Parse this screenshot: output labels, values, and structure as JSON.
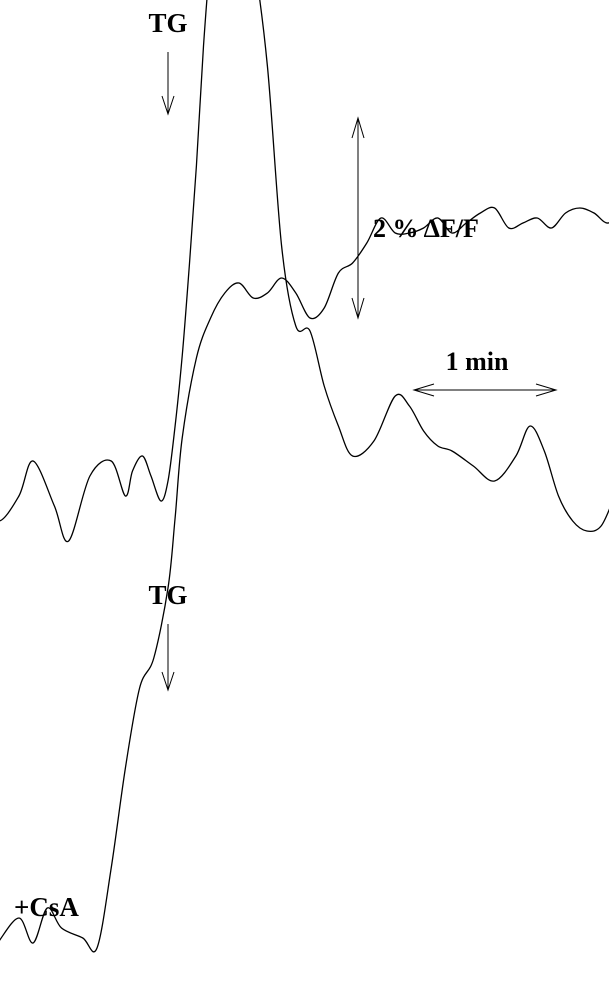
{
  "chart_data": {
    "type": "line",
    "colors": {
      "trace": "#000000",
      "background": "#ffffff"
    },
    "panels": [
      {
        "id": "control",
        "marker_label": "TG",
        "condition_label": "",
        "stimulus_time_min": 0,
        "series": [
          {
            "x_min": [
              -1.3,
              -1.2,
              -1.05,
              -0.95,
              -0.8,
              -0.7,
              -0.55,
              -0.4,
              -0.3,
              -0.25,
              -0.18,
              -0.12,
              -0.05,
              0,
              0.05,
              0.1,
              0.15,
              0.2,
              0.25,
              0.3,
              0.35,
              0.4,
              0.5,
              0.6,
              0.7,
              0.8,
              0.9,
              1.0,
              1.1,
              1.2,
              1.3,
              1.45,
              1.6,
              1.7,
              1.8,
              1.9,
              2.0,
              2.15,
              2.3,
              2.45,
              2.55,
              2.65,
              2.75,
              2.85,
              2.95,
              3.05,
              3.15,
              3.3,
              3.45,
              3.55,
              3.65,
              3.75,
              3.85,
              3.95,
              4.05,
              4.15
            ],
            "delta_f_percent": [
              0.0,
              -0.35,
              -0.1,
              0.25,
              -0.2,
              -0.55,
              0.1,
              0.25,
              -0.1,
              0.15,
              0.3,
              0.1,
              -0.15,
              0.05,
              0.6,
              1.3,
              2.2,
              3.2,
              4.4,
              5.3,
              5.95,
              6.0,
              5.9,
              5.3,
              4.2,
              2.4,
              1.6,
              1.55,
              1.0,
              0.6,
              0.3,
              0.45,
              0.9,
              0.8,
              0.55,
              0.4,
              0.35,
              0.2,
              0.05,
              0.3,
              0.6,
              0.35,
              -0.1,
              -0.35,
              -0.45,
              -0.4,
              -0.1,
              0.3,
              -0.1,
              0.1,
              0.25,
              0.0,
              -0.45,
              -0.4,
              -0.1,
              -0.25
            ]
          }
        ]
      },
      {
        "id": "cyclosporin",
        "marker_label": "TG",
        "condition_label": "+CsA",
        "stimulus_time_min": 0,
        "series": [
          {
            "x_min": [
              -1.3,
              -1.2,
              -1.05,
              -0.95,
              -0.85,
              -0.75,
              -0.6,
              -0.5,
              -0.4,
              -0.3,
              -0.2,
              -0.1,
              0,
              0.05,
              0.1,
              0.2,
              0.3,
              0.4,
              0.5,
              0.6,
              0.7,
              0.8,
              0.9,
              1.0,
              1.1,
              1.2,
              1.3,
              1.4,
              1.5,
              1.6,
              1.7,
              1.8,
              1.9,
              2.0,
              2.1,
              2.2,
              2.3,
              2.4,
              2.5,
              2.6,
              2.7,
              2.8,
              2.9,
              3.0,
              3.1,
              3.2,
              3.3,
              3.4,
              3.5,
              3.6,
              3.7,
              3.8,
              3.9,
              4.0,
              4.1,
              4.15
            ],
            "delta_f_percent": [
              -0.15,
              0.05,
              0.3,
              0.05,
              0.4,
              0.2,
              0.1,
              0.0,
              0.8,
              1.8,
              2.6,
              2.9,
              3.6,
              4.3,
              5.1,
              5.9,
              6.3,
              6.55,
              6.65,
              6.5,
              6.55,
              6.7,
              6.55,
              6.3,
              6.4,
              6.75,
              6.85,
              7.05,
              7.3,
              7.15,
              7.15,
              7.2,
              7.3,
              7.15,
              7.25,
              7.35,
              7.4,
              7.2,
              7.25,
              7.3,
              7.2,
              7.35,
              7.4,
              7.35,
              7.25,
              7.4,
              7.3,
              7.2,
              7.35,
              7.3,
              7.15,
              7.3,
              7.4,
              7.35,
              7.3,
              7.3
            ]
          }
        ]
      }
    ],
    "scale_bars": {
      "vertical_value": 2,
      "vertical_label": "2 % ΔF/F",
      "horizontal_value_min": 1,
      "horizontal_label": "1 min"
    },
    "grid": false,
    "axes_visible": false
  }
}
